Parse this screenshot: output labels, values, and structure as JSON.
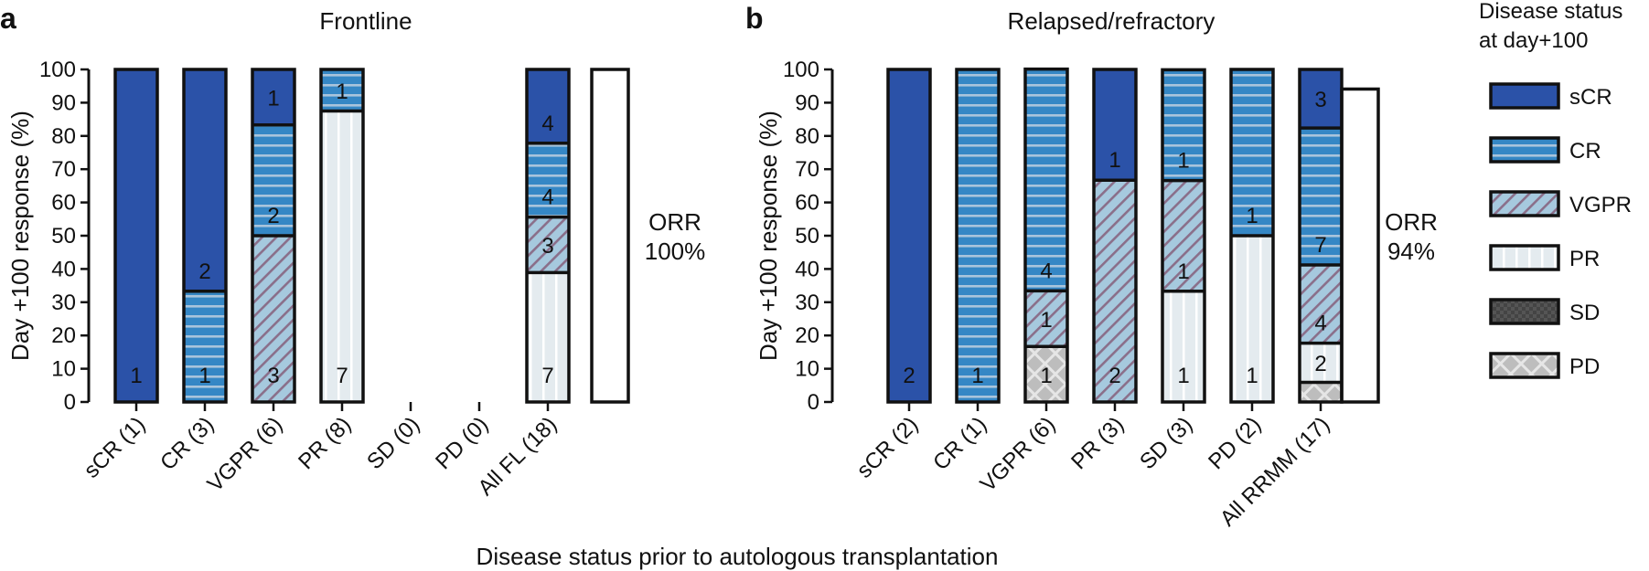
{
  "figure": {
    "xlabel": "Disease status prior to autologous transplantation",
    "legend_title": [
      "Disease status",
      "at day+100"
    ]
  },
  "colors": {
    "sCR": "#2b52a8",
    "CR": "#3587c5",
    "CR_stripe": "#a9c4dc",
    "VGPR": "#a6c9de",
    "VGPR_hatch": "#8a6f8a",
    "PR": "#e4ebef",
    "PR_stripe": "#ffffff",
    "SD": "#555555",
    "PD": "#bdbdbd",
    "PD_hatch": "#e6e6e6",
    "outline": "#111111"
  },
  "legend": [
    {
      "key": "sCR",
      "label": "sCR"
    },
    {
      "key": "CR",
      "label": "CR"
    },
    {
      "key": "VGPR",
      "label": "VGPR"
    },
    {
      "key": "PR",
      "label": "PR"
    },
    {
      "key": "SD",
      "label": "SD"
    },
    {
      "key": "PD",
      "label": "PD"
    }
  ],
  "chart_data": [
    {
      "type": "bar",
      "stacked": true,
      "panel": "a",
      "title": "Frontline",
      "ylabel": "Day +100 response (%)",
      "ylim": [
        0,
        100
      ],
      "yticks": [
        0,
        10,
        20,
        30,
        40,
        50,
        60,
        70,
        80,
        90,
        100
      ],
      "categories": [
        "sCR (1)",
        "CR (3)",
        "VGPR (6)",
        "PR (8)",
        "SD (0)",
        "PD (0)",
        "All FL (18)"
      ],
      "bars": [
        {
          "segments": [
            {
              "status": "sCR",
              "percent": 100,
              "count": "1"
            }
          ]
        },
        {
          "segments": [
            {
              "status": "CR",
              "percent": 33.3,
              "count": "1"
            },
            {
              "status": "sCR",
              "percent": 66.7,
              "count": "2"
            }
          ]
        },
        {
          "segments": [
            {
              "status": "VGPR",
              "percent": 50,
              "count": "3"
            },
            {
              "status": "CR",
              "percent": 33.3,
              "count": "2"
            },
            {
              "status": "sCR",
              "percent": 16.7,
              "count": "1"
            }
          ]
        },
        {
          "segments": [
            {
              "status": "PR",
              "percent": 87.5,
              "count": "7"
            },
            {
              "status": "CR",
              "percent": 12.5,
              "count": "1"
            }
          ]
        },
        {
          "segments": []
        },
        {
          "segments": []
        },
        {
          "segments": [
            {
              "status": "PR",
              "percent": 38.9,
              "count": "7"
            },
            {
              "status": "VGPR",
              "percent": 16.7,
              "count": "3"
            },
            {
              "status": "CR",
              "percent": 22.2,
              "count": "4"
            },
            {
              "status": "sCR",
              "percent": 22.2,
              "count": "4"
            }
          ]
        }
      ],
      "orr": {
        "label": "ORR",
        "value": "100%",
        "percent": 100
      }
    },
    {
      "type": "bar",
      "stacked": true,
      "panel": "b",
      "title": "Relapsed/refractory",
      "ylabel": "Day +100 response (%)",
      "ylim": [
        0,
        100
      ],
      "yticks": [
        0,
        10,
        20,
        30,
        40,
        50,
        60,
        70,
        80,
        90,
        100
      ],
      "categories": [
        "sCR (2)",
        "CR (1)",
        "VGPR (6)",
        "PR (3)",
        "SD (3)",
        "PD (2)",
        "All RRMM (17)"
      ],
      "bars": [
        {
          "segments": [
            {
              "status": "sCR",
              "percent": 100,
              "count": "2"
            }
          ]
        },
        {
          "segments": [
            {
              "status": "CR",
              "percent": 100,
              "count": "1"
            }
          ]
        },
        {
          "segments": [
            {
              "status": "PD",
              "percent": 16.7,
              "count": "1"
            },
            {
              "status": "VGPR",
              "percent": 16.7,
              "count": "1"
            },
            {
              "status": "CR",
              "percent": 66.7,
              "count": "4"
            }
          ]
        },
        {
          "segments": [
            {
              "status": "VGPR",
              "percent": 66.7,
              "count": "2"
            },
            {
              "status": "sCR",
              "percent": 33.3,
              "count": "1"
            }
          ]
        },
        {
          "segments": [
            {
              "status": "PR",
              "percent": 33.3,
              "count": "1"
            },
            {
              "status": "VGPR",
              "percent": 33.3,
              "count": "1"
            },
            {
              "status": "CR",
              "percent": 33.3,
              "count": "1"
            }
          ]
        },
        {
          "segments": [
            {
              "status": "PR",
              "percent": 50,
              "count": "1"
            },
            {
              "status": "CR",
              "percent": 50,
              "count": "1"
            }
          ]
        },
        {
          "segments": [
            {
              "status": "PD",
              "percent": 5.9,
              "count": ""
            },
            {
              "status": "PR",
              "percent": 11.8,
              "count": "2"
            },
            {
              "status": "VGPR",
              "percent": 23.5,
              "count": "4"
            },
            {
              "status": "CR",
              "percent": 41.2,
              "count": "7"
            },
            {
              "status": "sCR",
              "percent": 17.6,
              "count": "3"
            }
          ]
        }
      ],
      "orr": {
        "label": "ORR",
        "value": "94%",
        "percent": 94.1
      }
    }
  ]
}
